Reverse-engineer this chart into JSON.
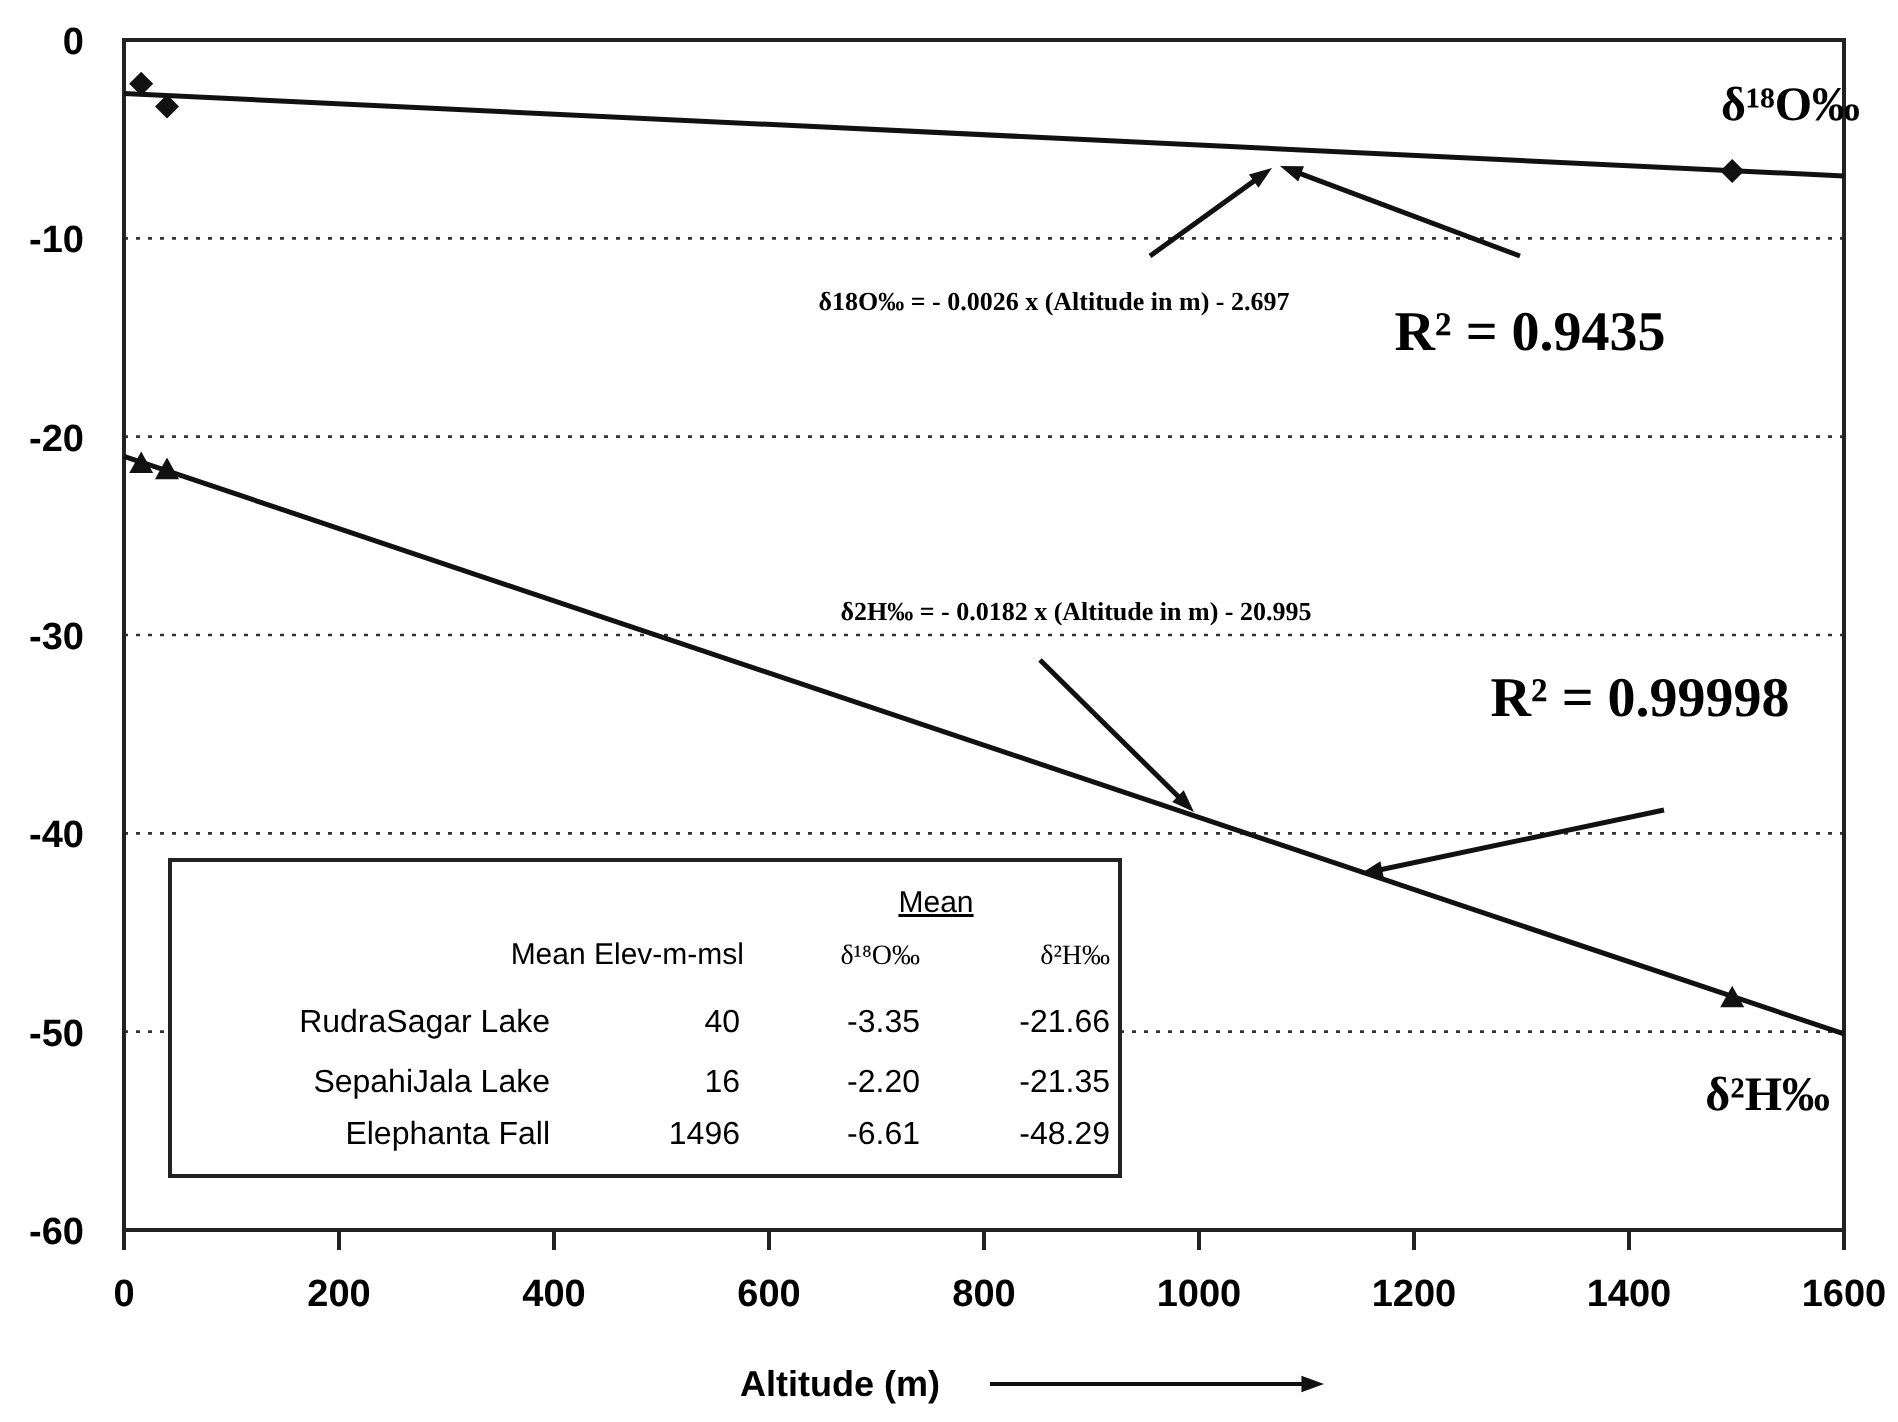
{
  "chart_data": [
    {
      "type": "scatter",
      "xlabel": "Altitude (m)",
      "xlim": [
        0,
        1600
      ],
      "xticks": [
        0,
        200,
        400,
        600,
        800,
        1000,
        1200,
        1400,
        1600
      ],
      "ylim": [
        -60,
        0
      ],
      "yticks": [
        0,
        -10,
        -20,
        -30,
        -40,
        -50,
        -60
      ],
      "grid": "y",
      "series": [
        {
          "name": "δ¹⁸O‰",
          "marker": "diamond",
          "color": "#111111",
          "x": [
            40,
            16,
            1496
          ],
          "values": [
            -3.35,
            -2.2,
            -6.61
          ]
        },
        {
          "name": "δ²H‰",
          "marker": "triangle",
          "color": "#111111",
          "x": [
            40,
            16,
            1496
          ],
          "values": [
            -21.66,
            -21.35,
            -48.29
          ]
        },
        {
          "type": "line",
          "color": "#111111",
          "x": [
            0,
            1600
          ],
          "values": [
            -2.697,
            -6.857
          ]
        },
        {
          "type": "line",
          "color": "#111111",
          "x": [
            0,
            1600
          ],
          "values": [
            -20.995,
            -50.115
          ]
        }
      ],
      "annotations": [
        "δ18O‰ = - 0.0026 x (Altitude in m) - 2.697",
        "R² = 0.9435",
        "δ2H‰ = - 0.0182 x (Altitude in m) - 20.995",
        "R² = 0.99998"
      ]
    },
    {
      "type": "other",
      "annotations": [
        "Mean",
        "Mean Elev-m-msl",
        "δ¹⁸O‰",
        "δ²H‰",
        "RudraSagar Lake",
        "40",
        "-3.35",
        "-21.66",
        "SepahiJala Lake",
        "16",
        "-2.20",
        "-21.35",
        "Elephanta Fall",
        "1496",
        "-6.61",
        "-48.29"
      ]
    }
  ]
}
